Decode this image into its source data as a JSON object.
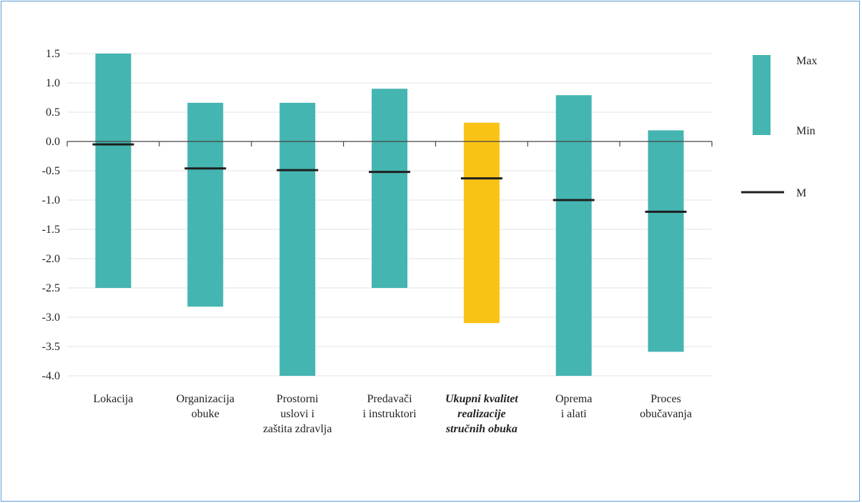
{
  "chart_data": {
    "type": "bar",
    "subtype": "floating-range",
    "y_ticks": [
      "1.5",
      "1.0",
      "0.5",
      "0.0",
      "-0.5",
      "-1.0",
      "-1.5",
      "-2.0",
      "-2.5",
      "-3.0",
      "-3.5",
      "-4.0"
    ],
    "ylim": [
      -4.0,
      1.5
    ],
    "grid": true,
    "legend_position": "right",
    "legend": {
      "max_label": "Max",
      "min_label": "Min",
      "mean_label": "M"
    },
    "colors": {
      "range": "#45b5b1",
      "highlight": "#f9c315",
      "mean": "#1f1f1f",
      "grid": "#e3e3e3",
      "axis": "#444444"
    },
    "categories": [
      {
        "lines": [
          "Lokacija"
        ],
        "max": 1.5,
        "min": -2.5,
        "mean": -0.05,
        "highlight": false
      },
      {
        "lines": [
          "Organizacija",
          "obuke"
        ],
        "max": 0.66,
        "min": -2.82,
        "mean": -0.46,
        "highlight": false
      },
      {
        "lines": [
          "Prostorni",
          "uslovi i",
          "zaštita zdravlja"
        ],
        "max": 0.66,
        "min": -4.0,
        "mean": -0.49,
        "highlight": false
      },
      {
        "lines": [
          "Predavači",
          "i instruktori"
        ],
        "max": 0.9,
        "min": -2.5,
        "mean": -0.52,
        "highlight": false
      },
      {
        "lines": [
          "Ukupni kvalitet",
          "realizacije",
          "stručnih obuka"
        ],
        "max": 0.32,
        "min": -3.1,
        "mean": -0.63,
        "highlight": true
      },
      {
        "lines": [
          "Oprema",
          "i alati"
        ],
        "max": 0.79,
        "min": -4.0,
        "mean": -1.0,
        "highlight": false
      },
      {
        "lines": [
          "Proces",
          "obučavanja"
        ],
        "max": 0.19,
        "min": -3.59,
        "mean": -1.2,
        "highlight": false
      }
    ]
  }
}
